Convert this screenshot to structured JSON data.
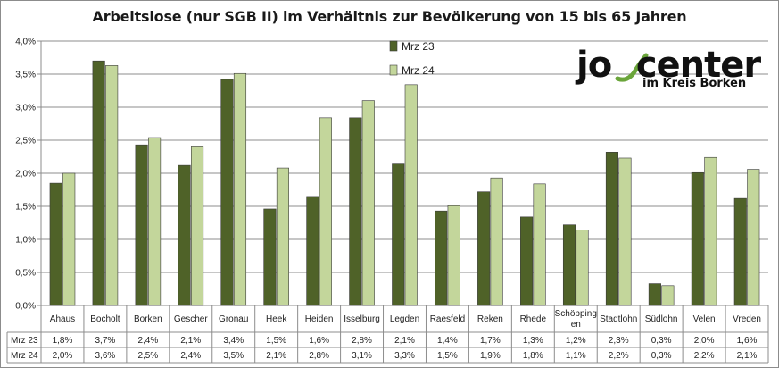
{
  "chart_data": {
    "type": "bar",
    "title": "Arbeitslose (nur SGB II) im Verhältnis zur Bevölkerung von 15 bis 65 Jahren",
    "categories": [
      "Ahaus",
      "Bocholt",
      "Borken",
      "Gescher",
      "Gronau",
      "Heek",
      "Heiden",
      "Isselburg",
      "Legden",
      "Raesfeld",
      "Reken",
      "Rhede",
      "Schöpping en",
      "Stadtlohn",
      "Südlohn",
      "Velen",
      "Vreden"
    ],
    "series": [
      {
        "name": "Mrz 23",
        "color": "#4f6228",
        "values": [
          1.85,
          3.7,
          2.43,
          2.12,
          3.42,
          1.46,
          1.65,
          2.84,
          2.14,
          1.43,
          1.72,
          1.34,
          1.22,
          2.32,
          0.33,
          2.01,
          1.62
        ],
        "labels": [
          "1,8%",
          "3,7%",
          "2,4%",
          "2,1%",
          "3,4%",
          "1,5%",
          "1,6%",
          "2,8%",
          "2,1%",
          "1,4%",
          "1,7%",
          "1,3%",
          "1,2%",
          "2,3%",
          "0,3%",
          "2,0%",
          "1,6%"
        ]
      },
      {
        "name": "Mrz 24",
        "color": "#c3d69b",
        "values": [
          2.0,
          3.63,
          2.54,
          2.4,
          3.51,
          2.08,
          2.84,
          3.1,
          3.34,
          1.51,
          1.93,
          1.84,
          1.14,
          2.23,
          0.3,
          2.24,
          2.06
        ],
        "labels": [
          "2,0%",
          "3,6%",
          "2,5%",
          "2,4%",
          "3,5%",
          "2,1%",
          "2,8%",
          "3,1%",
          "3,3%",
          "1,5%",
          "1,9%",
          "1,8%",
          "1,1%",
          "2,2%",
          "0,3%",
          "2,2%",
          "2,1%"
        ]
      }
    ],
    "yticks": [
      "0,0%",
      "0,5%",
      "1,0%",
      "1,5%",
      "2,0%",
      "2,5%",
      "3,0%",
      "3,5%",
      "4,0%"
    ],
    "ylim": [
      0,
      4
    ],
    "grid": true,
    "legend": "top-center",
    "data_table": true
  },
  "logo": {
    "main": "jobcenter",
    "sub": "im Kreis Borken"
  }
}
